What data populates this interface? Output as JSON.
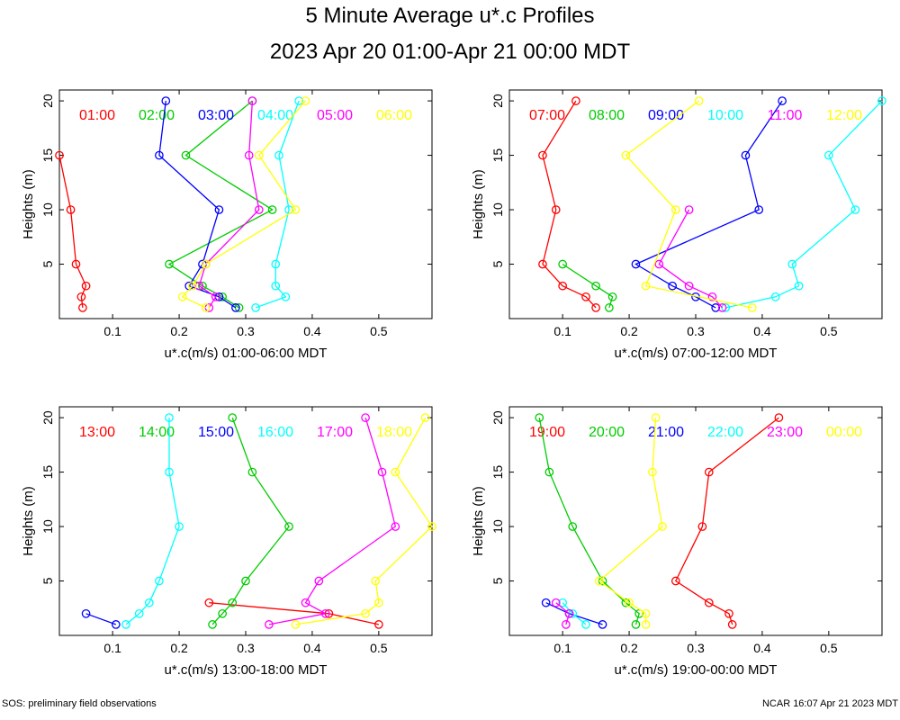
{
  "title": "5 Minute Average u*.c Profiles",
  "subtitle": "2023 Apr 20 01:00-Apr 21 00:00 MDT",
  "footer_left": "SOS: preliminary field observations",
  "footer_right": "NCAR 16:07 Apr 21 2023 MDT",
  "chart_data": [
    {
      "type": "line",
      "xlabel": "u*.c(m/s) 01:00-06:00 MDT",
      "ylabel": "Heights (m)",
      "xlim": [
        0.02,
        0.58
      ],
      "ylim": [
        0,
        21
      ],
      "xticks": [
        0.1,
        0.2,
        0.3,
        0.4,
        0.5
      ],
      "xtick_labels": [
        "0.1",
        "0.2",
        "0.3",
        "0.4",
        "0.5"
      ],
      "yticks": [
        5,
        10,
        15,
        20
      ],
      "ytick_labels": [
        "5",
        "10",
        "15",
        "20"
      ],
      "series": [
        {
          "name": "01:00",
          "color": "#ff0000",
          "heights": [
            1,
            2,
            3,
            5,
            10,
            15
          ],
          "values": [
            0.055,
            0.053,
            0.06,
            0.045,
            0.037,
            0.02
          ]
        },
        {
          "name": "02:00",
          "color": "#00cc00",
          "heights": [
            1,
            2,
            3,
            5,
            10,
            15,
            20
          ],
          "values": [
            0.29,
            0.265,
            0.235,
            0.185,
            0.34,
            0.21,
            0.31
          ]
        },
        {
          "name": "03:00",
          "color": "#0000ff",
          "heights": [
            1,
            2,
            3,
            5,
            10,
            15,
            20
          ],
          "values": [
            0.285,
            0.26,
            0.215,
            0.235,
            0.26,
            0.17,
            0.18
          ]
        },
        {
          "name": "04:00",
          "color": "#00ffff",
          "heights": [
            1,
            2,
            3,
            5,
            10,
            15,
            20
          ],
          "values": [
            0.315,
            0.36,
            0.345,
            0.345,
            0.365,
            0.35,
            0.38
          ]
        },
        {
          "name": "05:00",
          "color": "#ff00ff",
          "heights": [
            1,
            2,
            3,
            5,
            10,
            15,
            20
          ],
          "values": [
            0.245,
            0.255,
            0.23,
            0.24,
            0.32,
            0.305,
            0.31
          ]
        },
        {
          "name": "06:00",
          "color": "#ffff00",
          "heights": [
            1,
            2,
            3,
            5,
            10,
            15,
            20
          ],
          "values": [
            0.24,
            0.205,
            0.22,
            0.24,
            0.375,
            0.32,
            0.39
          ]
        }
      ]
    },
    {
      "type": "line",
      "xlabel": "u*.c(m/s) 07:00-12:00 MDT",
      "ylabel": "Heights (m)",
      "xlim": [
        0.02,
        0.58
      ],
      "ylim": [
        0,
        21
      ],
      "xticks": [
        0.1,
        0.2,
        0.3,
        0.4,
        0.5
      ],
      "xtick_labels": [
        "0.1",
        "0.2",
        "0.3",
        "0.4",
        "0.5"
      ],
      "yticks": [
        5,
        10,
        15,
        20
      ],
      "ytick_labels": [
        "5",
        "10",
        "15",
        "20"
      ],
      "series": [
        {
          "name": "07:00",
          "color": "#ff0000",
          "heights": [
            1,
            2,
            3,
            5,
            10,
            15,
            20
          ],
          "values": [
            0.15,
            0.135,
            0.1,
            0.07,
            0.09,
            0.07,
            0.12
          ]
        },
        {
          "name": "08:00",
          "color": "#00cc00",
          "heights": [
            1,
            2,
            3,
            5
          ],
          "values": [
            0.17,
            0.175,
            0.15,
            0.1
          ]
        },
        {
          "name": "09:00",
          "color": "#0000ff",
          "heights": [
            1,
            2,
            3,
            5,
            10,
            15,
            20
          ],
          "values": [
            0.33,
            0.3,
            0.265,
            0.21,
            0.395,
            0.375,
            0.43
          ]
        },
        {
          "name": "10:00",
          "color": "#00ffff",
          "heights": [
            1,
            2,
            3,
            5,
            10,
            15,
            20
          ],
          "values": [
            0.345,
            0.42,
            0.455,
            0.445,
            0.54,
            0.5,
            0.58
          ]
        },
        {
          "name": "11:00",
          "color": "#ff00ff",
          "heights": [
            1,
            2,
            3,
            5,
            10
          ],
          "values": [
            0.34,
            0.325,
            0.29,
            0.245,
            0.29
          ]
        },
        {
          "name": "12:00",
          "color": "#ffff00",
          "heights": [
            1,
            3,
            10,
            15,
            20
          ],
          "values": [
            0.385,
            0.225,
            0.27,
            0.195,
            0.305
          ]
        }
      ]
    },
    {
      "type": "line",
      "xlabel": "u*.c(m/s) 13:00-18:00 MDT",
      "ylabel": "Heights (m)",
      "xlim": [
        0.02,
        0.58
      ],
      "ylim": [
        0,
        21
      ],
      "xticks": [
        0.1,
        0.2,
        0.3,
        0.4,
        0.5
      ],
      "xtick_labels": [
        "0.1",
        "0.2",
        "0.3",
        "0.4",
        "0.5"
      ],
      "yticks": [
        5,
        10,
        15,
        20
      ],
      "ytick_labels": [
        "5",
        "10",
        "15",
        "20"
      ],
      "series": [
        {
          "name": "13:00",
          "color": "#ff0000",
          "heights": [
            1,
            2,
            3
          ],
          "values": [
            0.5,
            0.425,
            0.245
          ]
        },
        {
          "name": "14:00",
          "color": "#00cc00",
          "heights": [
            1,
            2,
            3,
            5,
            10,
            15,
            20
          ],
          "values": [
            0.25,
            0.265,
            0.28,
            0.3,
            0.365,
            0.31,
            0.28
          ]
        },
        {
          "name": "15:00",
          "color": "#0000ff",
          "heights": [
            1,
            2
          ],
          "values": [
            0.105,
            0.06
          ]
        },
        {
          "name": "16:00",
          "color": "#00ffff",
          "heights": [
            1,
            2,
            3,
            5,
            10,
            15,
            20
          ],
          "values": [
            0.12,
            0.14,
            0.155,
            0.17,
            0.2,
            0.185,
            0.185
          ]
        },
        {
          "name": "17:00",
          "color": "#ff00ff",
          "heights": [
            1,
            2,
            3,
            5,
            10,
            15,
            20
          ],
          "values": [
            0.335,
            0.42,
            0.39,
            0.41,
            0.525,
            0.505,
            0.48
          ]
        },
        {
          "name": "18:00",
          "color": "#ffff00",
          "heights": [
            1,
            2,
            3,
            5,
            10,
            15,
            20
          ],
          "values": [
            0.375,
            0.48,
            0.5,
            0.495,
            0.58,
            0.525,
            0.57
          ]
        }
      ]
    },
    {
      "type": "line",
      "xlabel": "u*.c(m/s) 19:00-00:00 MDT",
      "ylabel": "Heights (m)",
      "xlim": [
        0.02,
        0.58
      ],
      "ylim": [
        0,
        21
      ],
      "xticks": [
        0.1,
        0.2,
        0.3,
        0.4,
        0.5
      ],
      "xtick_labels": [
        "0.1",
        "0.2",
        "0.3",
        "0.4",
        "0.5"
      ],
      "yticks": [
        5,
        10,
        15,
        20
      ],
      "ytick_labels": [
        "5",
        "10",
        "15",
        "20"
      ],
      "series": [
        {
          "name": "19:00",
          "color": "#ff0000",
          "heights": [
            1,
            2,
            3,
            5,
            10,
            15,
            20
          ],
          "values": [
            0.355,
            0.35,
            0.32,
            0.27,
            0.31,
            0.32,
            0.425
          ]
        },
        {
          "name": "20:00",
          "color": "#00cc00",
          "heights": [
            1,
            2,
            3,
            5,
            10,
            15,
            20
          ],
          "values": [
            0.21,
            0.215,
            0.195,
            0.16,
            0.115,
            0.08,
            0.065
          ]
        },
        {
          "name": "21:00",
          "color": "#0000ff",
          "heights": [
            1,
            2,
            3
          ],
          "values": [
            0.16,
            0.11,
            0.075
          ]
        },
        {
          "name": "22:00",
          "color": "#00ffff",
          "heights": [
            1,
            2,
            3
          ],
          "values": [
            0.135,
            0.115,
            0.1
          ]
        },
        {
          "name": "23:00",
          "color": "#ff00ff",
          "heights": [
            1,
            2,
            3
          ],
          "values": [
            0.105,
            0.11,
            0.09
          ]
        },
        {
          "name": "00:00",
          "color": "#ffff00",
          "heights": [
            1,
            2,
            3,
            5,
            10,
            15,
            20
          ],
          "values": [
            0.225,
            0.225,
            0.2,
            0.155,
            0.25,
            0.235,
            0.24
          ]
        }
      ]
    }
  ]
}
